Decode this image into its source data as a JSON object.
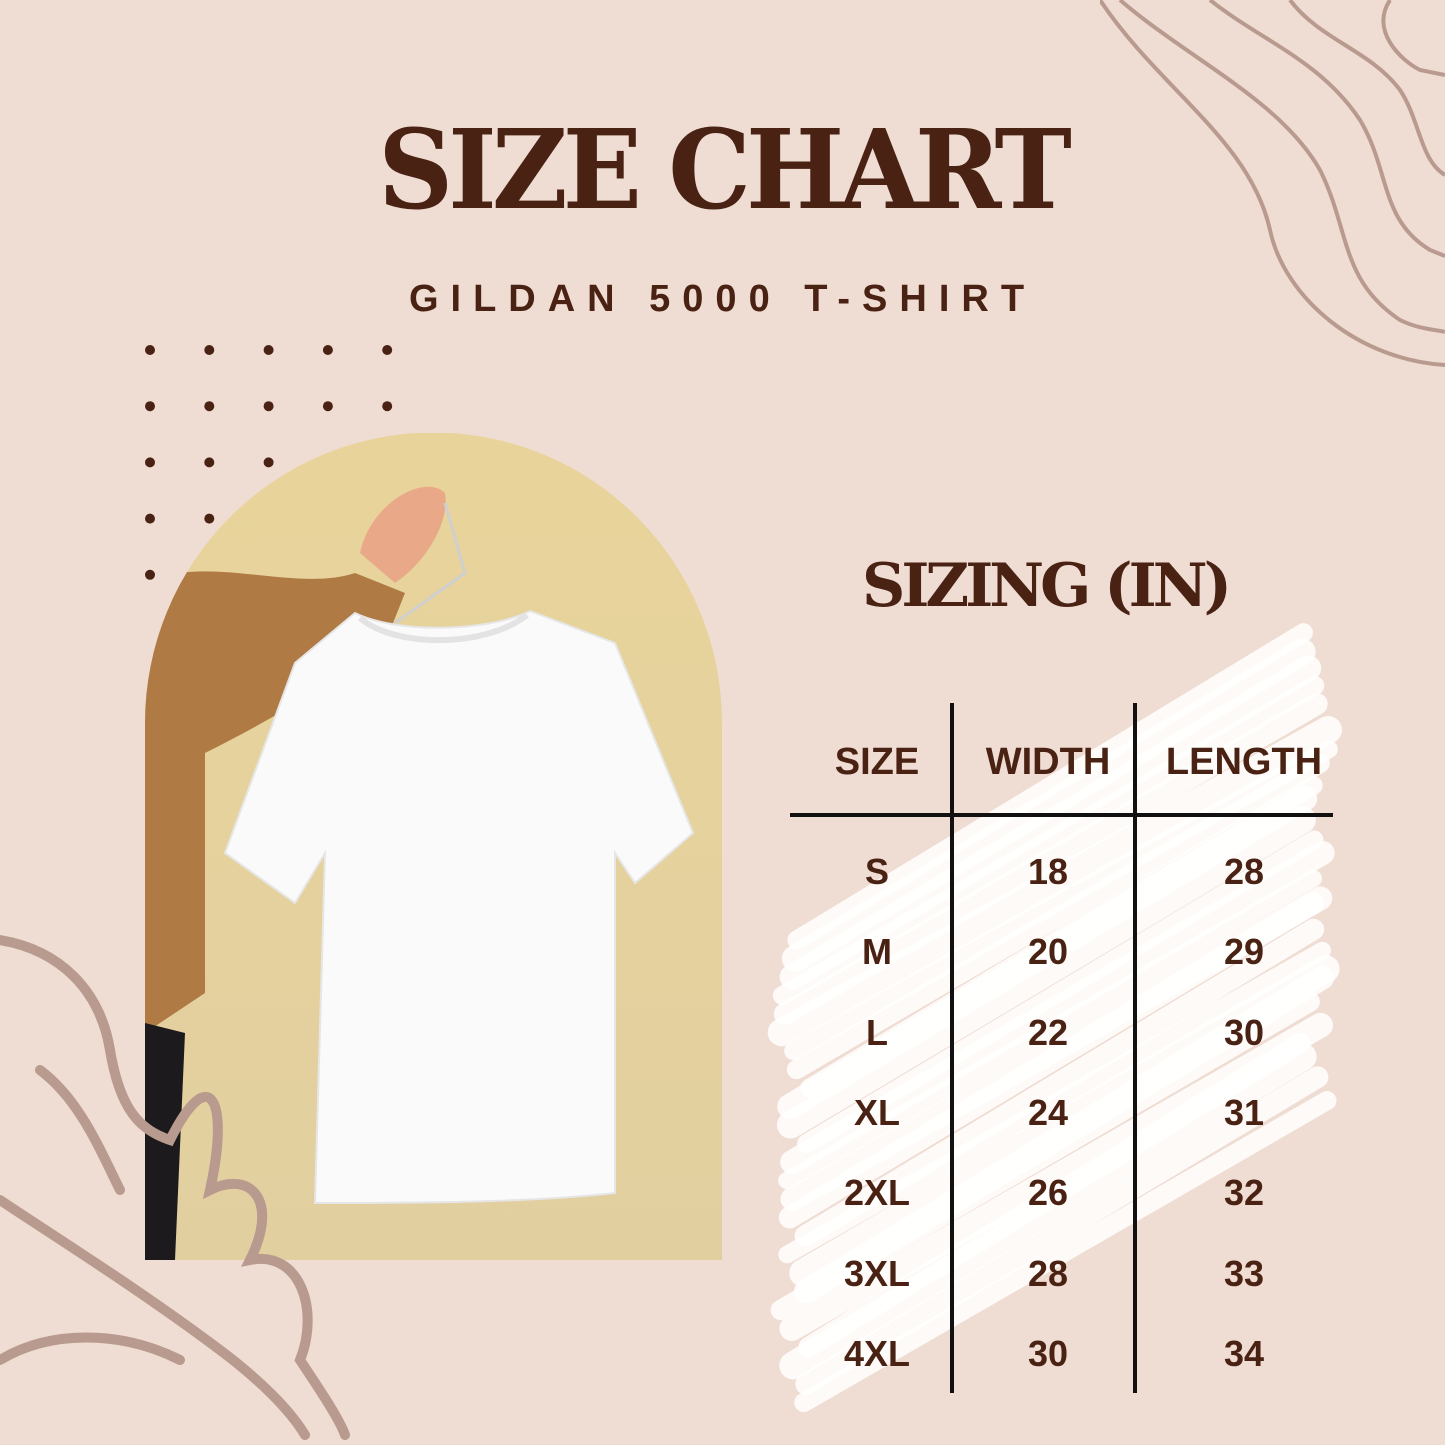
{
  "title": "SIZE CHART",
  "subtitle": "GILDAN 5000 T-SHIRT",
  "table": {
    "title": "SIZING (IN)",
    "columns": [
      "SIZE",
      "WIDTH",
      "LENGTH"
    ],
    "rows": [
      [
        "S",
        "18",
        "28"
      ],
      [
        "M",
        "20",
        "29"
      ],
      [
        "L",
        "22",
        "30"
      ],
      [
        "XL",
        "24",
        "31"
      ],
      [
        "2XL",
        "26",
        "32"
      ],
      [
        "3XL",
        "28",
        "33"
      ],
      [
        "4XL",
        "30",
        "34"
      ]
    ]
  },
  "colors": {
    "background": "#efdcd2",
    "text": "#4a2213",
    "decor": "#b89a8e",
    "photo_bg": "#e6d29a"
  }
}
